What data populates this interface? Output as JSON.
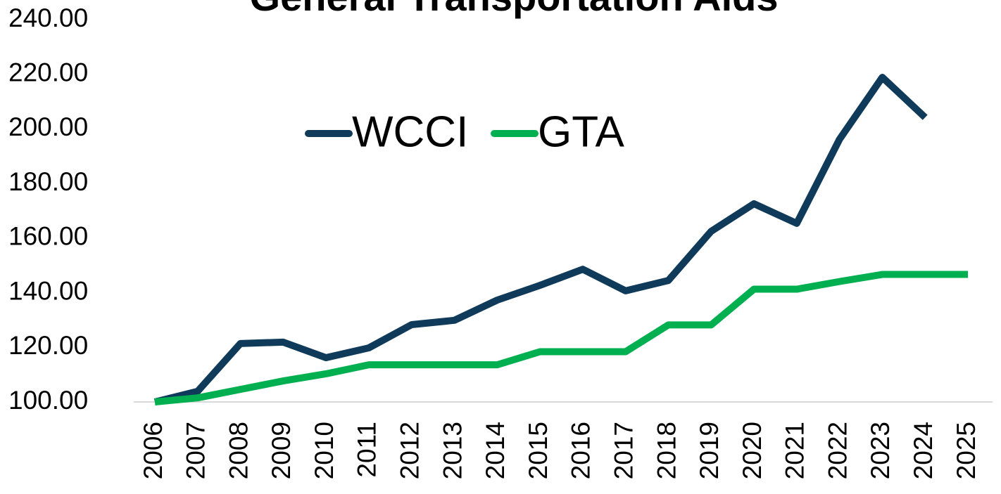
{
  "chart_data": {
    "type": "line",
    "title": "General Transportation Aids",
    "x": [
      "2006",
      "2007",
      "2008",
      "2009",
      "2010",
      "2011",
      "2012",
      "2013",
      "2014",
      "2015",
      "2016",
      "2017",
      "2018",
      "2019",
      "2020",
      "2021",
      "2022",
      "2023",
      "2024",
      "2025"
    ],
    "series": [
      {
        "name": "WCCI",
        "color": "#0f3a5a",
        "values": [
          100,
          103.9,
          121.4,
          121.9,
          116.2,
          119.8,
          128.3,
          129.9,
          137.3,
          142.7,
          148.6,
          140.7,
          144.5,
          162.5,
          172.6,
          165.4,
          196.2,
          218.9,
          204.2,
          null
        ]
      },
      {
        "name": "GTA",
        "color": "#00b050",
        "values": [
          100,
          101.5,
          104.6,
          107.7,
          110.3,
          113.6,
          113.6,
          113.6,
          113.6,
          118.4,
          118.4,
          118.4,
          128.2,
          128.2,
          141.3,
          141.3,
          144.1,
          146.7,
          146.7,
          146.7
        ]
      }
    ],
    "ylim": [
      100,
      240
    ],
    "yticks": [
      {
        "value": 100,
        "label": "100.00"
      },
      {
        "value": 120,
        "label": "120.00"
      },
      {
        "value": 140,
        "label": "140.00"
      },
      {
        "value": 160,
        "label": "160.00"
      },
      {
        "value": 180,
        "label": "180.00"
      },
      {
        "value": 200,
        "label": "200.00"
      },
      {
        "value": 220,
        "label": "220.00"
      },
      {
        "value": 240,
        "label": "240.00"
      }
    ],
    "legend": "top"
  }
}
